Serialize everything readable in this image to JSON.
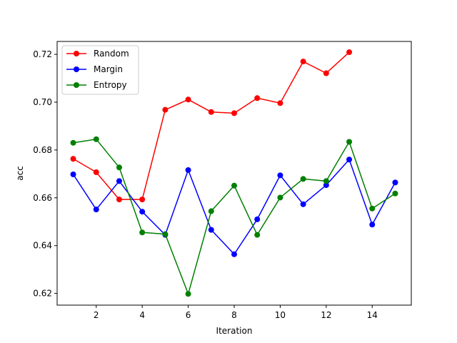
{
  "chart_data": {
    "type": "line",
    "title": "",
    "xlabel": "Iteration",
    "ylabel": "acc",
    "xlim": [
      0.3,
      15.7
    ],
    "ylim": [
      0.6151,
      0.7254
    ],
    "xticks": [
      2,
      4,
      6,
      8,
      10,
      12,
      14
    ],
    "yticks": [
      0.62,
      0.64,
      0.66,
      0.68,
      0.7,
      0.72
    ],
    "ytick_labels": [
      "0.62",
      "0.64",
      "0.66",
      "0.68",
      "0.70",
      "0.72"
    ],
    "grid": false,
    "legend_position": "top-left",
    "series": [
      {
        "name": "Random",
        "color": "#ff0000",
        "x": [
          1,
          2,
          3,
          4,
          5,
          6,
          7,
          8,
          9,
          10,
          11,
          12,
          13
        ],
        "values": [
          0.6763,
          0.6707,
          0.6593,
          0.6593,
          0.6968,
          0.7011,
          0.6959,
          0.6954,
          0.7017,
          0.6996,
          0.717,
          0.7121,
          0.7209
        ]
      },
      {
        "name": "Margin",
        "color": "#0000ff",
        "x": [
          1,
          2,
          3,
          4,
          5,
          6,
          7,
          8,
          9,
          10,
          11,
          12,
          13,
          14,
          15
        ],
        "values": [
          0.6698,
          0.6551,
          0.667,
          0.6542,
          0.6445,
          0.6716,
          0.6466,
          0.6364,
          0.651,
          0.6694,
          0.6573,
          0.6653,
          0.676,
          0.6488,
          0.6664
        ]
      },
      {
        "name": "Entropy",
        "color": "#008000",
        "x": [
          1,
          2,
          3,
          4,
          5,
          6,
          7,
          8,
          9,
          10,
          11,
          12,
          13,
          14,
          15
        ],
        "values": [
          0.683,
          0.6845,
          0.6727,
          0.6455,
          0.6448,
          0.6198,
          0.6544,
          0.6651,
          0.6445,
          0.6601,
          0.6679,
          0.667,
          0.6834,
          0.6555,
          0.6618
        ]
      }
    ]
  }
}
